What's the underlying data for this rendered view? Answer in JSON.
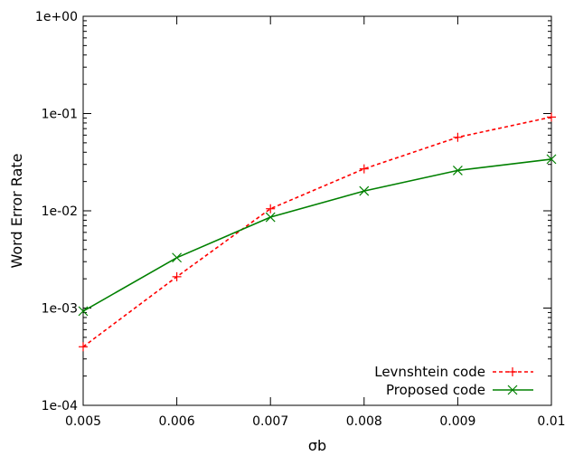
{
  "chart_data": {
    "type": "line",
    "xlabel": "σb",
    "ylabel": "Word Error Rate",
    "x": [
      0.005,
      0.006,
      0.007,
      0.008,
      0.009,
      0.01
    ],
    "x_tick_labels": [
      "0.005",
      "0.006",
      "0.007",
      "0.008",
      "0.009",
      "0.01"
    ],
    "xlim": [
      0.005,
      0.01
    ],
    "y_scale": "log",
    "ylim": [
      0.0001,
      1
    ],
    "y_ticks": [
      0.0001,
      0.001,
      0.01,
      0.1,
      1
    ],
    "y_tick_labels": [
      "1e-04",
      "1e-03",
      "1e-02",
      "1e-01",
      "1e+00"
    ],
    "legend_position": "bottom-right",
    "grid": false,
    "series": [
      {
        "name": "Levnshtein code",
        "color": "#ff0000",
        "line_style": "dashed",
        "marker": "plus",
        "values": [
          0.0004,
          0.0021,
          0.0105,
          0.027,
          0.057,
          0.092
        ]
      },
      {
        "name": "Proposed code",
        "color": "#008000",
        "line_style": "solid",
        "marker": "x",
        "values": [
          0.00093,
          0.0033,
          0.0086,
          0.016,
          0.026,
          0.034
        ]
      }
    ]
  }
}
